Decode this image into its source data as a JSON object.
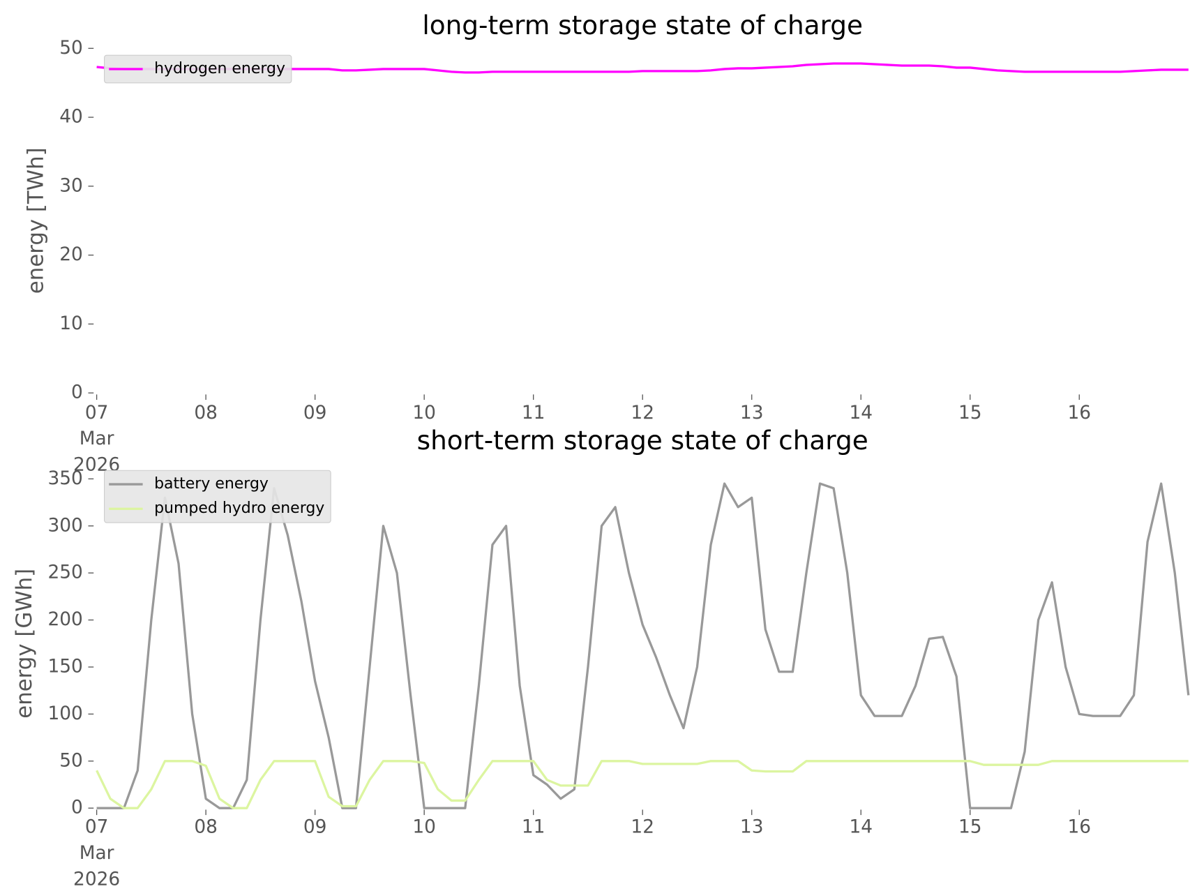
{
  "chart_data": [
    {
      "type": "line",
      "title": "long-term storage state of charge",
      "ylabel": "energy [TWh]",
      "x": [
        "2026-03-07T00:00",
        "2026-03-07T03:00",
        "2026-03-07T06:00",
        "2026-03-07T09:00",
        "2026-03-07T12:00",
        "2026-03-07T15:00",
        "2026-03-07T18:00",
        "2026-03-07T21:00",
        "2026-03-08T00:00",
        "2026-03-08T03:00",
        "2026-03-08T06:00",
        "2026-03-08T09:00",
        "2026-03-08T12:00",
        "2026-03-08T15:00",
        "2026-03-08T18:00",
        "2026-03-08T21:00",
        "2026-03-09T00:00",
        "2026-03-09T03:00",
        "2026-03-09T06:00",
        "2026-03-09T09:00",
        "2026-03-09T12:00",
        "2026-03-09T15:00",
        "2026-03-09T18:00",
        "2026-03-09T21:00",
        "2026-03-10T00:00",
        "2026-03-10T03:00",
        "2026-03-10T06:00",
        "2026-03-10T09:00",
        "2026-03-10T12:00",
        "2026-03-10T15:00",
        "2026-03-10T18:00",
        "2026-03-10T21:00",
        "2026-03-11T00:00",
        "2026-03-11T03:00",
        "2026-03-11T06:00",
        "2026-03-11T09:00",
        "2026-03-11T12:00",
        "2026-03-11T15:00",
        "2026-03-11T18:00",
        "2026-03-11T21:00",
        "2026-03-12T00:00",
        "2026-03-12T03:00",
        "2026-03-12T06:00",
        "2026-03-12T09:00",
        "2026-03-12T12:00",
        "2026-03-12T15:00",
        "2026-03-12T18:00",
        "2026-03-12T21:00",
        "2026-03-13T00:00",
        "2026-03-13T03:00",
        "2026-03-13T06:00",
        "2026-03-13T09:00",
        "2026-03-13T12:00",
        "2026-03-13T15:00",
        "2026-03-13T18:00",
        "2026-03-13T21:00",
        "2026-03-14T00:00",
        "2026-03-14T03:00",
        "2026-03-14T06:00",
        "2026-03-14T09:00",
        "2026-03-14T12:00",
        "2026-03-14T15:00",
        "2026-03-14T18:00",
        "2026-03-14T21:00",
        "2026-03-15T00:00",
        "2026-03-15T03:00",
        "2026-03-15T06:00",
        "2026-03-15T09:00",
        "2026-03-15T12:00",
        "2026-03-15T15:00",
        "2026-03-15T18:00",
        "2026-03-15T21:00",
        "2026-03-16T00:00",
        "2026-03-16T03:00",
        "2026-03-16T06:00",
        "2026-03-16T09:00",
        "2026-03-16T12:00",
        "2026-03-16T15:00",
        "2026-03-16T18:00",
        "2026-03-16T21:00",
        "2026-03-17T00:00"
      ],
      "series": [
        {
          "name": "hydrogen energy",
          "color": "#ff00ff",
          "values": [
            47.3,
            47.1,
            47.0,
            47.0,
            47.0,
            47.0,
            47.0,
            47.0,
            47.0,
            47.0,
            47.0,
            47.0,
            47.0,
            47.0,
            47.0,
            47.0,
            47.0,
            47.0,
            46.8,
            46.8,
            46.9,
            47.0,
            47.0,
            47.0,
            47.0,
            46.8,
            46.6,
            46.5,
            46.5,
            46.6,
            46.6,
            46.6,
            46.6,
            46.6,
            46.6,
            46.6,
            46.6,
            46.6,
            46.6,
            46.6,
            46.7,
            46.7,
            46.7,
            46.7,
            46.7,
            46.8,
            47.0,
            47.1,
            47.1,
            47.2,
            47.3,
            47.4,
            47.6,
            47.7,
            47.8,
            47.8,
            47.8,
            47.7,
            47.6,
            47.5,
            47.5,
            47.5,
            47.4,
            47.2,
            47.2,
            47.0,
            46.8,
            46.7,
            46.6,
            46.6,
            46.6,
            46.6,
            46.6,
            46.6,
            46.6,
            46.6,
            46.7,
            46.8,
            46.9,
            46.9,
            46.9
          ]
        }
      ],
      "xlim": [
        "2026-03-07",
        "2026-03-17"
      ],
      "xticks": [
        {
          "value": "2026-03-07",
          "label": "07\nMar\n2026"
        },
        {
          "value": "2026-03-08",
          "label": "08"
        },
        {
          "value": "2026-03-09",
          "label": "09"
        },
        {
          "value": "2026-03-10",
          "label": "10"
        },
        {
          "value": "2026-03-11",
          "label": "11"
        },
        {
          "value": "2026-03-12",
          "label": "12"
        },
        {
          "value": "2026-03-13",
          "label": "13"
        },
        {
          "value": "2026-03-14",
          "label": "14"
        },
        {
          "value": "2026-03-15",
          "label": "15"
        },
        {
          "value": "2026-03-16",
          "label": "16"
        }
      ],
      "ylim": [
        0,
        50
      ],
      "yticks": [
        0,
        10,
        20,
        30,
        40,
        50
      ],
      "grid": false,
      "legend": "upper left"
    },
    {
      "type": "line",
      "title": "short-term storage state of charge",
      "ylabel": "energy [GWh]",
      "x": [
        "2026-03-07T00:00",
        "2026-03-07T03:00",
        "2026-03-07T06:00",
        "2026-03-07T09:00",
        "2026-03-07T12:00",
        "2026-03-07T15:00",
        "2026-03-07T18:00",
        "2026-03-07T21:00",
        "2026-03-08T00:00",
        "2026-03-08T03:00",
        "2026-03-08T06:00",
        "2026-03-08T09:00",
        "2026-03-08T12:00",
        "2026-03-08T15:00",
        "2026-03-08T18:00",
        "2026-03-08T21:00",
        "2026-03-09T00:00",
        "2026-03-09T03:00",
        "2026-03-09T06:00",
        "2026-03-09T09:00",
        "2026-03-09T12:00",
        "2026-03-09T15:00",
        "2026-03-09T18:00",
        "2026-03-09T21:00",
        "2026-03-10T00:00",
        "2026-03-10T03:00",
        "2026-03-10T06:00",
        "2026-03-10T09:00",
        "2026-03-10T12:00",
        "2026-03-10T15:00",
        "2026-03-10T18:00",
        "2026-03-10T21:00",
        "2026-03-11T00:00",
        "2026-03-11T03:00",
        "2026-03-11T06:00",
        "2026-03-11T09:00",
        "2026-03-11T12:00",
        "2026-03-11T15:00",
        "2026-03-11T18:00",
        "2026-03-11T21:00",
        "2026-03-12T00:00",
        "2026-03-12T03:00",
        "2026-03-12T06:00",
        "2026-03-12T09:00",
        "2026-03-12T12:00",
        "2026-03-12T15:00",
        "2026-03-12T18:00",
        "2026-03-12T21:00",
        "2026-03-13T00:00",
        "2026-03-13T03:00",
        "2026-03-13T06:00",
        "2026-03-13T09:00",
        "2026-03-13T12:00",
        "2026-03-13T15:00",
        "2026-03-13T18:00",
        "2026-03-13T21:00",
        "2026-03-14T00:00",
        "2026-03-14T03:00",
        "2026-03-14T06:00",
        "2026-03-14T09:00",
        "2026-03-14T12:00",
        "2026-03-14T15:00",
        "2026-03-14T18:00",
        "2026-03-14T21:00",
        "2026-03-15T00:00",
        "2026-03-15T03:00",
        "2026-03-15T06:00",
        "2026-03-15T09:00",
        "2026-03-15T12:00",
        "2026-03-15T15:00",
        "2026-03-15T18:00",
        "2026-03-15T21:00",
        "2026-03-16T00:00",
        "2026-03-16T03:00",
        "2026-03-16T06:00",
        "2026-03-16T09:00",
        "2026-03-16T12:00",
        "2026-03-16T15:00",
        "2026-03-16T18:00",
        "2026-03-16T21:00",
        "2026-03-17T00:00"
      ],
      "series": [
        {
          "name": "battery energy",
          "color": "#999999",
          "values": [
            0,
            0,
            0,
            40,
            200,
            330,
            260,
            100,
            10,
            0,
            0,
            30,
            200,
            340,
            290,
            220,
            135,
            75,
            0,
            0,
            150,
            300,
            250,
            120,
            0,
            0,
            0,
            0,
            130,
            280,
            300,
            130,
            35,
            25,
            10,
            20,
            150,
            300,
            320,
            250,
            195,
            160,
            120,
            85,
            150,
            280,
            345,
            320,
            330,
            190,
            145,
            145,
            250,
            345,
            340,
            250,
            120,
            98,
            98,
            98,
            130,
            180,
            182,
            140,
            0,
            0,
            0,
            0,
            60,
            200,
            240,
            150,
            100,
            98,
            98,
            98,
            120,
            283,
            345,
            250,
            120
          ]
        },
        {
          "name": "pumped hydro energy",
          "color": "#dcf5a0",
          "values": [
            40,
            10,
            0,
            0,
            20,
            50,
            50,
            50,
            45,
            10,
            0,
            0,
            30,
            50,
            50,
            50,
            50,
            12,
            2,
            2,
            30,
            50,
            50,
            50,
            48,
            20,
            8,
            8,
            30,
            50,
            50,
            50,
            50,
            30,
            24,
            24,
            24,
            50,
            50,
            50,
            47,
            47,
            47,
            47,
            47,
            50,
            50,
            50,
            40,
            39,
            39,
            39,
            50,
            50,
            50,
            50,
            50,
            50,
            50,
            50,
            50,
            50,
            50,
            50,
            50,
            46,
            46,
            46,
            46,
            46,
            50,
            50,
            50,
            50,
            50,
            50,
            50,
            50,
            50,
            50,
            50
          ]
        }
      ],
      "xlim": [
        "2026-03-07",
        "2026-03-17"
      ],
      "xticks": [
        {
          "value": "2026-03-07",
          "label": "07\nMar\n2026"
        },
        {
          "value": "2026-03-08",
          "label": "08"
        },
        {
          "value": "2026-03-09",
          "label": "09"
        },
        {
          "value": "2026-03-10",
          "label": "10"
        },
        {
          "value": "2026-03-11",
          "label": "11"
        },
        {
          "value": "2026-03-12",
          "label": "12"
        },
        {
          "value": "2026-03-13",
          "label": "13"
        },
        {
          "value": "2026-03-14",
          "label": "14"
        },
        {
          "value": "2026-03-15",
          "label": "15"
        },
        {
          "value": "2026-03-16",
          "label": "16"
        }
      ],
      "ylim": [
        0,
        350
      ],
      "yticks": [
        0,
        50,
        100,
        150,
        200,
        250,
        300,
        350
      ],
      "grid": false,
      "legend": "upper left"
    }
  ]
}
